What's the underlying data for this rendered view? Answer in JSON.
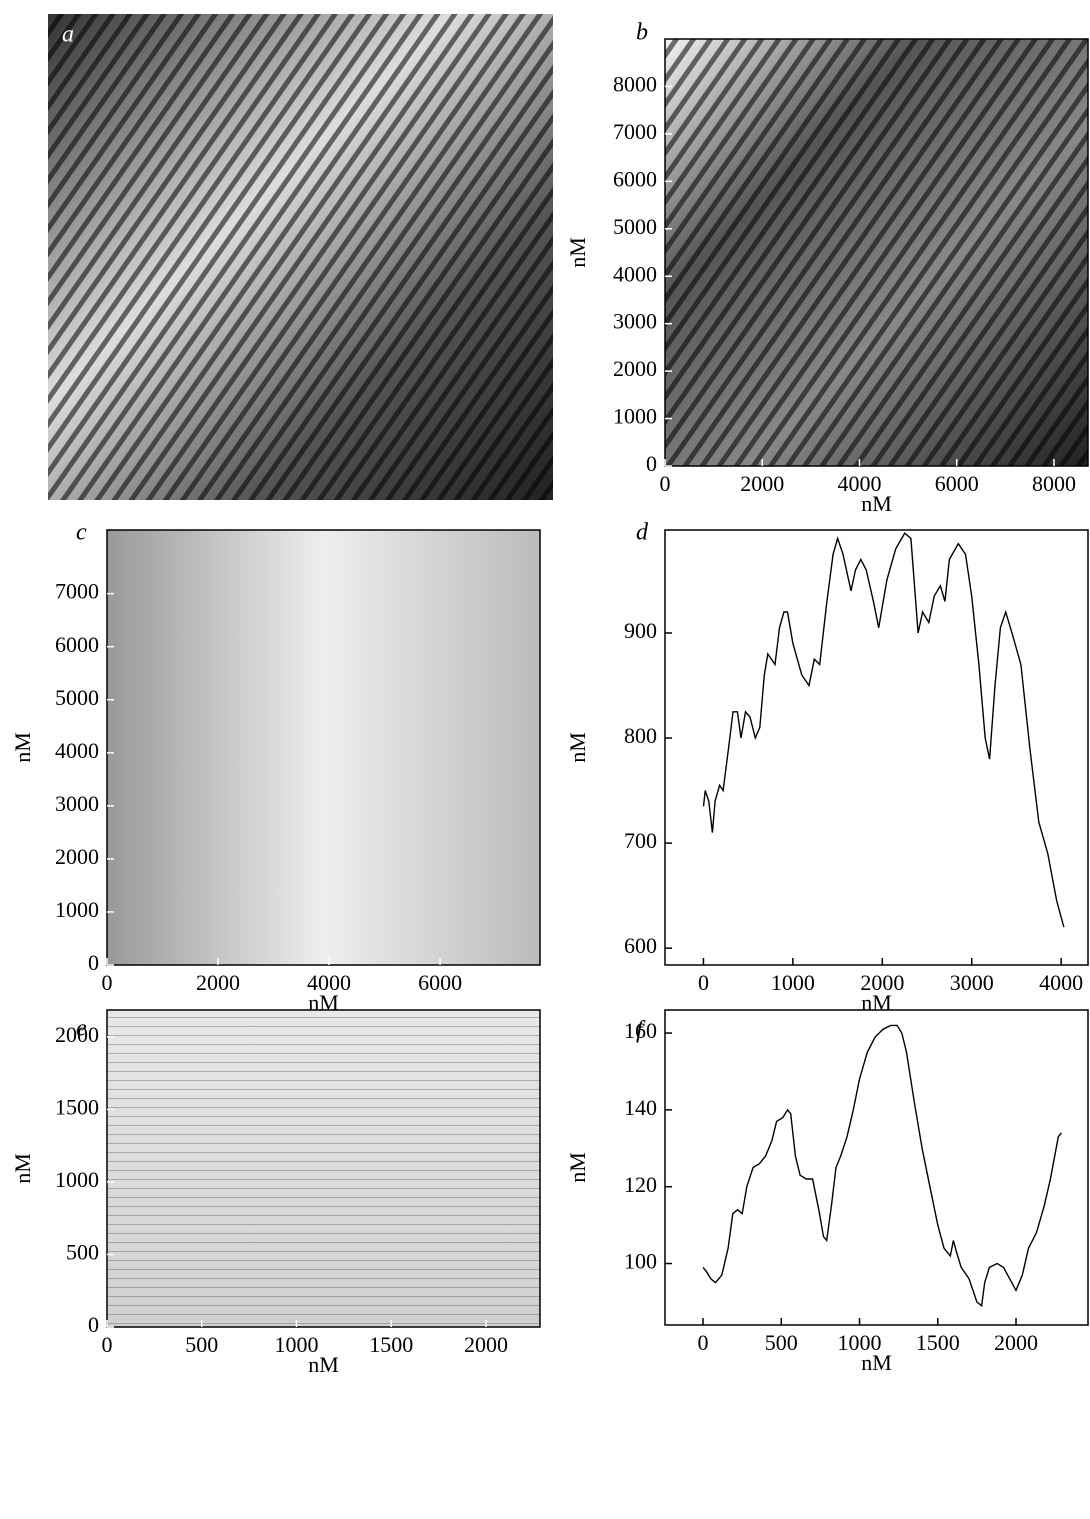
{
  "chart_data": [
    {
      "type": "image",
      "panel_label": "a"
    },
    {
      "type": "image",
      "panel_label": "b",
      "x_label": "nM",
      "y_label": "nM",
      "xlim": [
        0,
        8700
      ],
      "ylim": [
        0,
        9000
      ],
      "xticks": [
        0,
        2000,
        4000,
        6000,
        8000
      ],
      "yticks": [
        0,
        1000,
        2000,
        3000,
        4000,
        5000,
        6000,
        7000,
        8000
      ]
    },
    {
      "type": "image",
      "panel_label": "c",
      "x_label": "nM",
      "y_label": "nM",
      "xlim": [
        0,
        7800
      ],
      "ylim": [
        0,
        8200
      ],
      "xticks": [
        0,
        2000,
        4000,
        6000
      ],
      "yticks": [
        0,
        1000,
        2000,
        3000,
        4000,
        5000,
        6000,
        7000
      ]
    },
    {
      "type": "line",
      "panel_label": "d",
      "x_label": "nM",
      "y_label": "nM",
      "color": "#000000",
      "xlim": [
        -430,
        4300
      ],
      "ylim": [
        584,
        998
      ],
      "xticks": [
        0,
        1000,
        2000,
        3000,
        4000
      ],
      "yticks": [
        600,
        700,
        800,
        900
      ],
      "x": [
        0,
        20,
        60,
        100,
        130,
        180,
        220,
        280,
        330,
        380,
        420,
        470,
        520,
        580,
        630,
        680,
        720,
        800,
        850,
        900,
        940,
        1000,
        1100,
        1180,
        1240,
        1300,
        1380,
        1450,
        1500,
        1560,
        1650,
        1700,
        1760,
        1820,
        1900,
        1960,
        2050,
        2150,
        2250,
        2320,
        2400,
        2450,
        2520,
        2580,
        2650,
        2700,
        2750,
        2850,
        2930,
        3000,
        3080,
        3150,
        3200,
        3260,
        3320,
        3380,
        3450,
        3550,
        3650,
        3750,
        3850,
        3950,
        4030
      ],
      "values": [
        735,
        750,
        740,
        710,
        740,
        755,
        750,
        790,
        825,
        825,
        800,
        825,
        820,
        800,
        810,
        860,
        880,
        870,
        905,
        920,
        920,
        890,
        860,
        850,
        875,
        870,
        930,
        975,
        990,
        975,
        940,
        960,
        970,
        960,
        930,
        905,
        950,
        980,
        995,
        990,
        900,
        920,
        910,
        935,
        945,
        930,
        970,
        985,
        975,
        935,
        870,
        800,
        780,
        850,
        905,
        920,
        900,
        870,
        790,
        720,
        690,
        645,
        620
      ]
    },
    {
      "type": "image",
      "panel_label": "e",
      "x_label": "nM",
      "y_label": "nM",
      "xlim": [
        0,
        2285
      ],
      "ylim": [
        0,
        2186
      ],
      "xticks": [
        0,
        500,
        1000,
        1500,
        2000
      ],
      "yticks": [
        0,
        500,
        1000,
        1500,
        2000
      ]
    },
    {
      "type": "line",
      "panel_label": "f",
      "x_label": "nM",
      "y_label": "nM",
      "color": "#000000",
      "xlim": [
        -243,
        2460
      ],
      "ylim": [
        84,
        166
      ],
      "xticks": [
        0,
        500,
        1000,
        1500,
        2000
      ],
      "yticks": [
        100,
        120,
        140,
        160
      ],
      "x": [
        0,
        20,
        50,
        80,
        120,
        160,
        190,
        220,
        250,
        280,
        320,
        360,
        400,
        440,
        470,
        510,
        540,
        560,
        590,
        620,
        660,
        700,
        740,
        770,
        790,
        820,
        850,
        880,
        920,
        960,
        1000,
        1050,
        1100,
        1150,
        1200,
        1240,
        1270,
        1300,
        1350,
        1400,
        1450,
        1500,
        1540,
        1580,
        1600,
        1620,
        1650,
        1700,
        1750,
        1780,
        1800,
        1830,
        1880,
        1920,
        1960,
        2000,
        2040,
        2080,
        2130,
        2180,
        2220,
        2270,
        2290
      ],
      "values": [
        99,
        98,
        96,
        95,
        97,
        104,
        113,
        114,
        113,
        120,
        125,
        126,
        128,
        132,
        137,
        138,
        140,
        139,
        128,
        123,
        122,
        122,
        114,
        107,
        106,
        115,
        125,
        128,
        133,
        140,
        148,
        155,
        159,
        161,
        162,
        162,
        160,
        155,
        142,
        130,
        120,
        110,
        104,
        102,
        106,
        103,
        99,
        96,
        90,
        89,
        95,
        99,
        100,
        99,
        96,
        93,
        97,
        104,
        108,
        115,
        122,
        133,
        134
      ]
    }
  ]
}
